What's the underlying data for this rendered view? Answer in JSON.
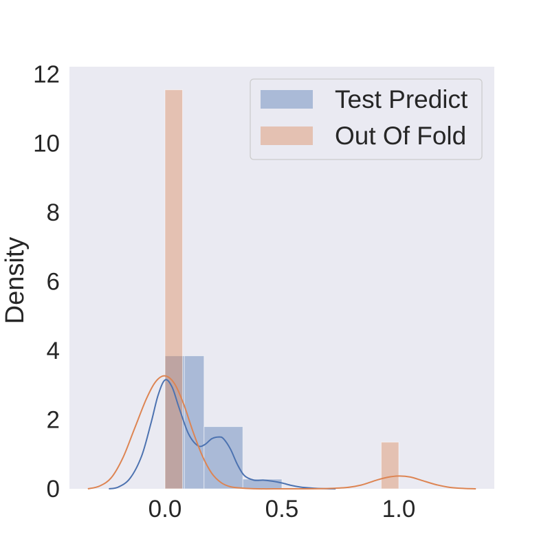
{
  "chart_data": {
    "type": "bar",
    "xlabel": "",
    "ylabel": "Density",
    "xlim": [
      -0.4,
      1.4
    ],
    "ylim": [
      0,
      12.2
    ],
    "xticks": [
      0.0,
      0.5,
      1.0
    ],
    "xtick_labels": [
      "0.0",
      "0.5",
      "1.0"
    ],
    "yticks": [
      0,
      2,
      4,
      6,
      8,
      10,
      12
    ],
    "ytick_labels": [
      "0",
      "2",
      "4",
      "6",
      "8",
      "10",
      "12"
    ],
    "grid": false,
    "legend_position": "top-right",
    "colors": {
      "background": "#eaeaf2",
      "test_predict_bar": "#4c72b0",
      "test_predict_line": "#4c72b0",
      "out_of_fold_bar": "#dd8452",
      "out_of_fold_line": "#dd8452"
    },
    "series": [
      {
        "name": "Test Predict",
        "histogram": [
          {
            "x0": 0.0,
            "x1": 0.083,
            "density": 3.85
          },
          {
            "x0": 0.083,
            "x1": 0.167,
            "density": 3.85
          },
          {
            "x0": 0.167,
            "x1": 0.333,
            "density": 1.8
          },
          {
            "x0": 0.333,
            "x1": 0.5,
            "density": 0.28
          }
        ],
        "kde": {
          "x": [
            -0.24,
            -0.2,
            -0.15,
            -0.1,
            -0.06,
            -0.03,
            0.0,
            0.03,
            0.06,
            0.1,
            0.14,
            0.17,
            0.2,
            0.23,
            0.25,
            0.28,
            0.31,
            0.34,
            0.38,
            0.42,
            0.46,
            0.5,
            0.54,
            0.58,
            0.63,
            0.68,
            0.73
          ],
          "y": [
            0.0,
            0.05,
            0.3,
            0.95,
            1.9,
            2.7,
            3.15,
            2.95,
            2.35,
            1.6,
            1.25,
            1.28,
            1.45,
            1.5,
            1.45,
            1.15,
            0.7,
            0.38,
            0.25,
            0.25,
            0.22,
            0.17,
            0.1,
            0.05,
            0.02,
            0.005,
            0.0
          ]
        }
      },
      {
        "name": "Out Of Fold",
        "histogram": [
          {
            "x0": 0.0,
            "x1": 0.075,
            "density": 11.55
          },
          {
            "x0": 0.925,
            "x1": 1.0,
            "density": 1.35
          }
        ],
        "kde": {
          "x": [
            -0.33,
            -0.28,
            -0.23,
            -0.18,
            -0.13,
            -0.08,
            -0.04,
            0.0,
            0.04,
            0.08,
            0.12,
            0.16,
            0.2,
            0.24,
            0.28,
            0.33,
            0.4,
            0.5,
            0.6,
            0.7,
            0.78,
            0.84,
            0.9,
            0.95,
            1.0,
            1.05,
            1.1,
            1.16,
            1.22,
            1.28,
            1.33
          ],
          "y": [
            0.0,
            0.08,
            0.32,
            0.9,
            1.75,
            2.6,
            3.1,
            3.27,
            3.05,
            2.45,
            1.65,
            0.95,
            0.45,
            0.18,
            0.06,
            0.02,
            0.0,
            0.0,
            0.0,
            0.01,
            0.04,
            0.11,
            0.24,
            0.33,
            0.37,
            0.34,
            0.24,
            0.12,
            0.04,
            0.01,
            0.0
          ]
        }
      }
    ]
  }
}
